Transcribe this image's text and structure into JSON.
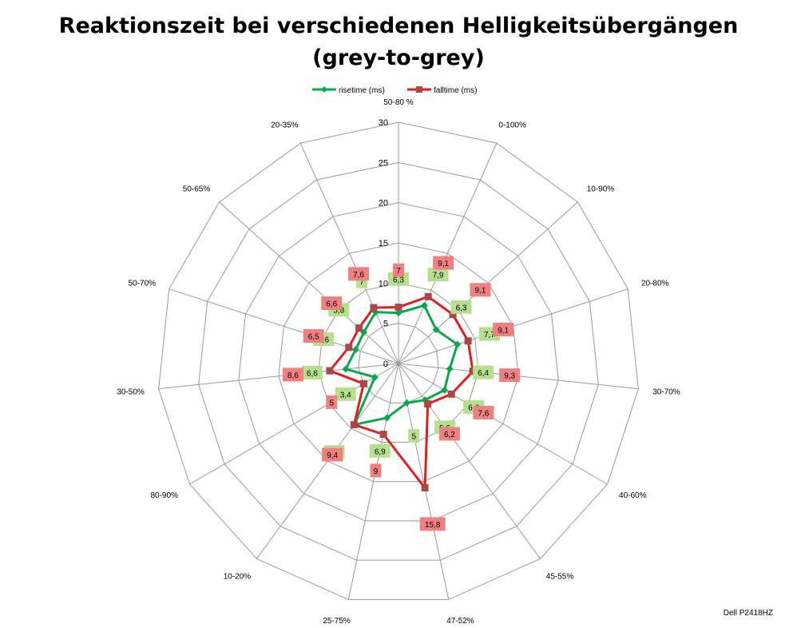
{
  "chart_data": {
    "type": "radar",
    "title_line1": "Reaktionszeit bei verschiedenen Helligkeitsübergängen",
    "title_line2": "(grey-to-grey)",
    "categories": [
      "50-80 %",
      "0-100%",
      "10-90%",
      "20-80%",
      "30-70%",
      "40-60%",
      "45-55%",
      "47-52%",
      "25-75%",
      "10-20%",
      "80-90%",
      "30-50%",
      "50-70%",
      "50-65%",
      "20-35%"
    ],
    "rlim": [
      0,
      30
    ],
    "ticks": [
      "0",
      "5",
      "10",
      "15",
      "20",
      "25",
      "30"
    ],
    "tick_values": [
      0,
      5,
      10,
      15,
      20,
      25,
      30
    ],
    "grid": true,
    "legend_position": "top",
    "series": [
      {
        "name": "risetime (ms)",
        "color": "#0aa84a",
        "label_bg": "#b5e08e",
        "marker": "diamond",
        "values": [
          6.3,
          7.9,
          6.3,
          7.7,
          6.4,
          6.6,
          5.6,
          5,
          6.9,
          9.4,
          3.4,
          6.6,
          5.6,
          5.8,
          7
        ],
        "labels": [
          "6,3",
          "7,9",
          "6,3",
          "7,7",
          "6,4",
          "6,6",
          "5,6",
          "5",
          "6,9",
          "9,4",
          "3,4",
          "6,6",
          "5,6",
          "5,8",
          "7"
        ]
      },
      {
        "name": "falltime (ms)",
        "color": "#e01e1e",
        "label_bg": "#f08080",
        "marker": "square",
        "values": [
          7,
          9.1,
          9.1,
          9.1,
          9.3,
          7.6,
          6.2,
          15.8,
          9,
          9.4,
          5,
          8.6,
          6.5,
          6.6,
          7.6
        ],
        "labels": [
          "7",
          "9,1",
          "9,1",
          "9,1",
          "9,3",
          "7,6",
          "6,2",
          "15,8",
          "9",
          "9,4",
          "5",
          "8,6",
          "6,5",
          "6,6",
          "7,6"
        ]
      }
    ]
  },
  "credit": "Dell P2418HZ"
}
